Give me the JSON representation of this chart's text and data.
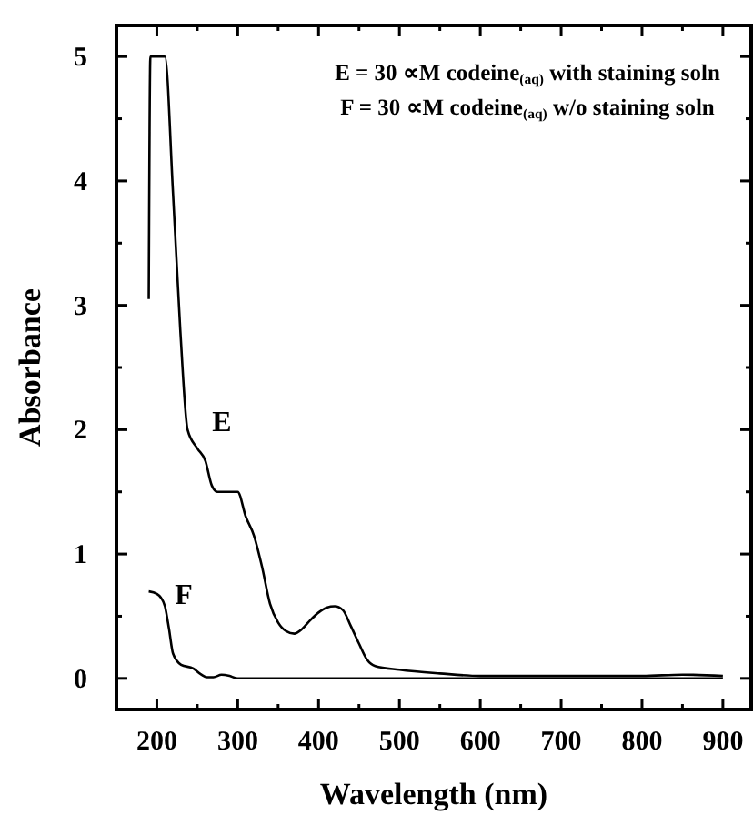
{
  "chart_data": {
    "type": "line",
    "xlabel": "Wavelength (nm)",
    "ylabel": "Absorbance",
    "xlim": [
      150,
      935
    ],
    "ylim": [
      -0.25,
      5.25
    ],
    "xticks": [
      200,
      {
        "value": 250,
        "label": null
      },
      300,
      {
        "value": 350,
        "label": null
      },
      400,
      {
        "value": 450,
        "label": null
      },
      500,
      {
        "value": 550,
        "label": null
      },
      600,
      {
        "value": 650,
        "label": null
      },
      700,
      {
        "value": 750,
        "label": null
      },
      800,
      {
        "value": 850,
        "label": null
      },
      900
    ],
    "yticks": [
      0,
      {
        "value": 0.5,
        "label": null
      },
      1,
      {
        "value": 1.5,
        "label": null
      },
      2,
      {
        "value": 2.5,
        "label": null
      },
      3,
      {
        "value": 3.5,
        "label": null
      },
      4,
      {
        "value": 4.5,
        "label": null
      },
      5
    ],
    "grid": false,
    "marker": "none",
    "line_style": "solid",
    "series": [
      {
        "color": "#000000",
        "x": [
          190,
          192,
          210,
          220,
          229,
          238,
          250,
          260,
          268,
          275,
          290,
          300,
          310,
          320,
          330,
          340,
          350,
          360,
          370,
          380,
          390,
          400,
          410,
          420,
          430,
          440,
          450,
          460,
          470,
          500,
          550,
          600,
          700,
          800,
          850,
          900
        ],
        "values": [
          3.05,
          5,
          5,
          3.9,
          2.8,
          2.0,
          1.85,
          1.75,
          1.55,
          1.5,
          1.5,
          1.5,
          1.3,
          1.15,
          0.9,
          0.6,
          0.45,
          0.38,
          0.36,
          0.4,
          0.47,
          0.53,
          0.57,
          0.58,
          0.55,
          0.42,
          0.28,
          0.15,
          0.1,
          0.07,
          0.04,
          0.02,
          0.02,
          0.02,
          0.03,
          0.02
        ]
      },
      {
        "color": "#000000",
        "x": [
          190,
          200,
          205,
          210,
          215,
          220,
          230,
          245,
          255,
          262,
          270,
          280,
          290,
          300,
          400,
          600,
          900
        ],
        "values": [
          0.7,
          0.68,
          0.65,
          0.58,
          0.4,
          0.2,
          0.11,
          0.08,
          0.03,
          0.01,
          0.01,
          0.03,
          0.02,
          0.0,
          0.0,
          0.0,
          0.0
        ]
      }
    ],
    "annotations": [
      "E",
      "F",
      "E = 30 ∝M codeine$_{(aq)}$ with staining soln",
      "F = 30 ∝M codeine$_{(aq)}$ w/o staining soln"
    ]
  }
}
